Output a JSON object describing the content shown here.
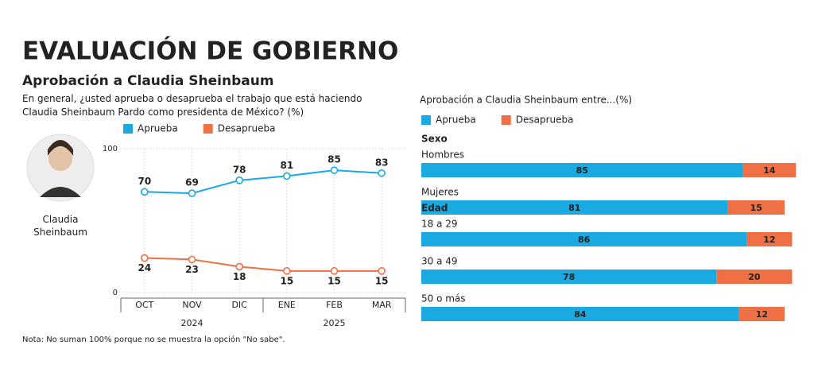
{
  "header": {
    "title": "EVALUACIÓN DE GOBIERNO"
  },
  "chart_data": [
    {
      "type": "line",
      "title": "Aprobación a Claudia Sheinbaum",
      "subtitle": "En general, ¿usted aprueba o desaprueba el trabajo que está haciendo Claudia Sheinbaum Pardo como presidenta de México?  (%)",
      "photo_caption": "Claudia Sheinbaum",
      "categories": [
        "OCT",
        "NOV",
        "DIC",
        "ENE",
        "FEB",
        "MAR"
      ],
      "category_groups": [
        {
          "label": "2024",
          "count": 3
        },
        {
          "label": "2025",
          "count": 3
        }
      ],
      "series": [
        {
          "name": "Aprueba",
          "color": "#1ba9e1",
          "values": [
            70,
            69,
            78,
            81,
            85,
            83
          ]
        },
        {
          "name": "Desaprueba",
          "color": "#ee7044",
          "values": [
            24,
            23,
            18,
            15,
            15,
            15
          ]
        }
      ],
      "ylim": [
        0,
        100
      ],
      "yticks": [
        0,
        100
      ],
      "grid": true,
      "note": "Nota: No suman 100% porque no se muestra la opción \"No sabe\"."
    },
    {
      "type": "bar",
      "orientation": "horizontal",
      "stacked": true,
      "title": "Aprobación a Claudia Sheinbaum entre...(%)",
      "categories": [
        "Hombres",
        "Mujeres",
        "18 a 29",
        "30 a 49",
        "50 o más"
      ],
      "category_groups": [
        {
          "label": "Sexo",
          "count": 2
        },
        {
          "label": "Edad",
          "count": 3
        }
      ],
      "series": [
        {
          "name": "Aprueba",
          "color": "#1ba9e1",
          "values": [
            85,
            81,
            86,
            78,
            84
          ]
        },
        {
          "name": "Desaprueba",
          "color": "#ee7044",
          "values": [
            14,
            15,
            12,
            20,
            12
          ]
        }
      ],
      "xlim": [
        0,
        100
      ]
    }
  ]
}
